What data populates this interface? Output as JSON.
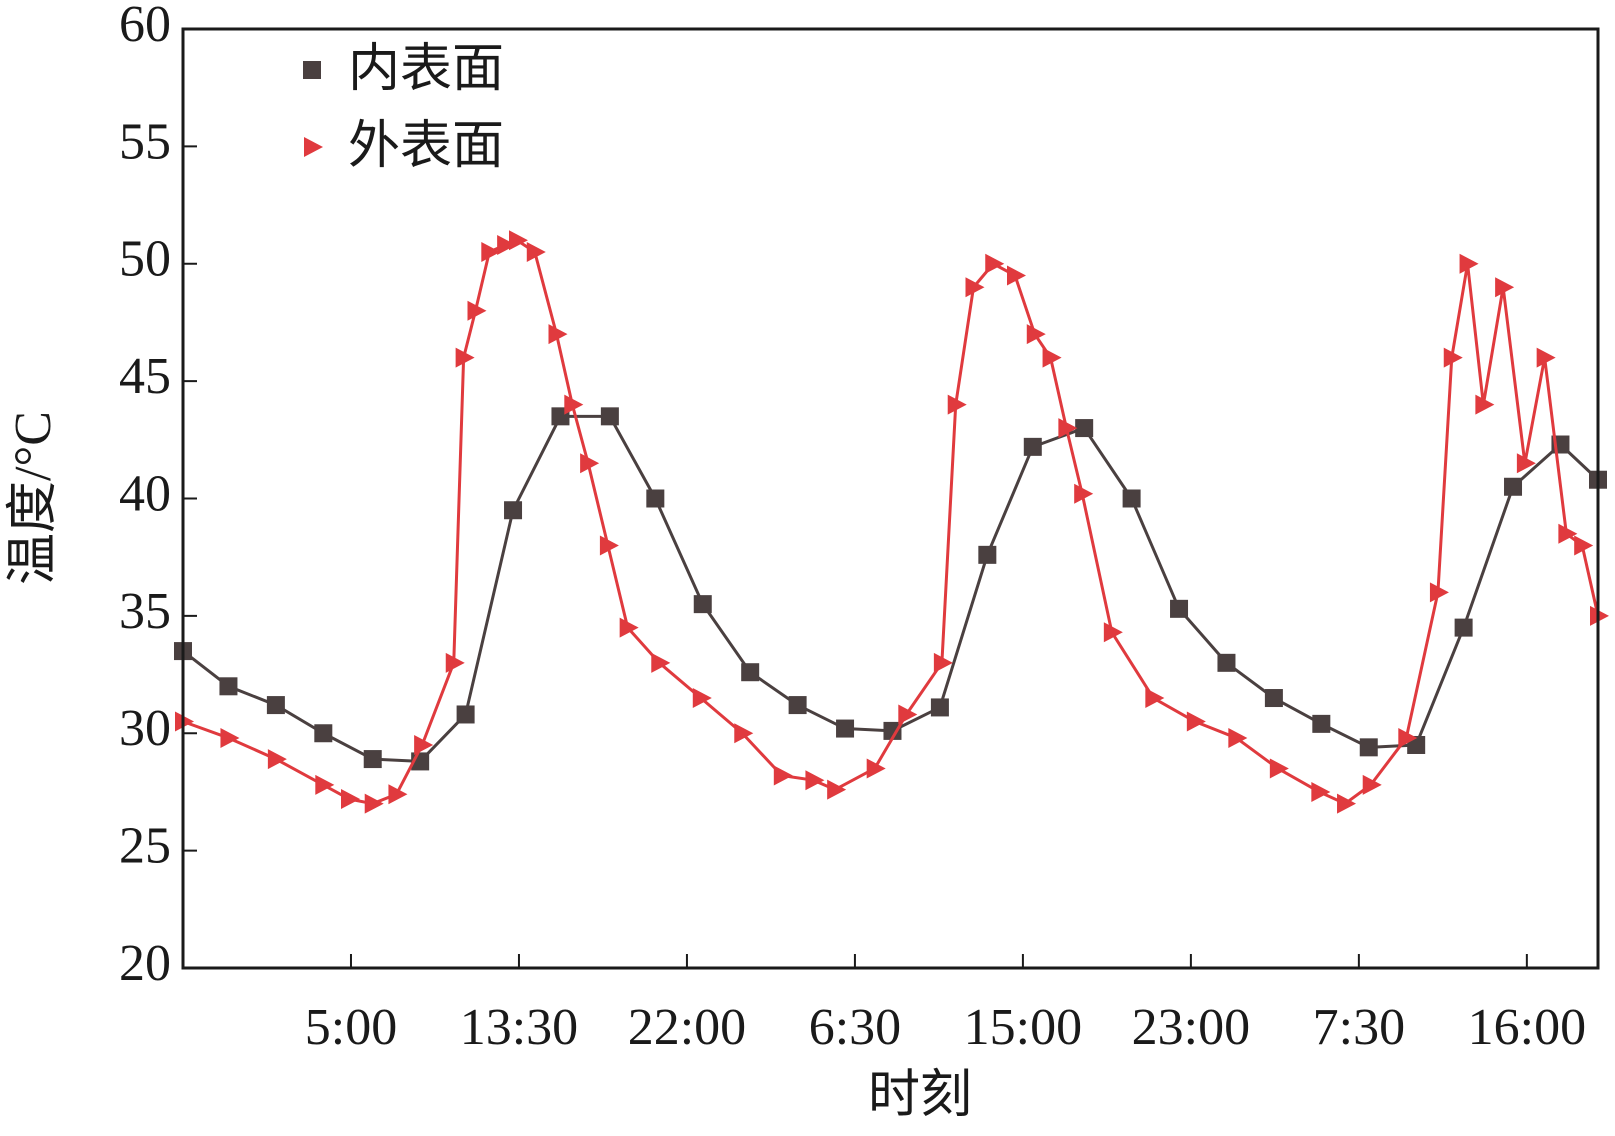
{
  "chart_data": {
    "type": "line",
    "xlabel": "时刻",
    "ylabel": "温度/°C",
    "xlim": [
      0,
      71.6
    ],
    "ylim": [
      20,
      60
    ],
    "xticks": [
      {
        "value": 8.5,
        "label": "5:00"
      },
      {
        "value": 17,
        "label": "13:30"
      },
      {
        "value": 25.5,
        "label": "22:00"
      },
      {
        "value": 34,
        "label": "6:30"
      },
      {
        "value": 42.5,
        "label": "15:00"
      },
      {
        "value": 51,
        "label": "23:00"
      },
      {
        "value": 59.5,
        "label": "7:30"
      },
      {
        "value": 68,
        "label": "16:00"
      }
    ],
    "yticks": [
      20,
      25,
      30,
      35,
      40,
      45,
      50,
      55,
      60
    ],
    "grid": false,
    "legend": "upper left",
    "series": [
      {
        "name": "内表面",
        "color": "#4a4040",
        "marker": "square",
        "x": [
          0,
          2.3,
          4.7,
          7.1,
          9.6,
          12.0,
          14.3,
          16.7,
          19.1,
          21.6,
          23.9,
          26.3,
          28.7,
          31.1,
          33.5,
          35.9,
          38.3,
          40.7,
          43.0,
          45.6,
          48.0,
          50.4,
          52.8,
          55.2,
          57.6,
          60.0,
          62.4,
          64.8,
          67.3,
          69.7,
          71.6
        ],
        "values": [
          33.5,
          32,
          31.2,
          30,
          28.9,
          28.8,
          30.8,
          39.5,
          43.5,
          43.5,
          40,
          35.5,
          32.6,
          31.2,
          30.2,
          30.1,
          31.1,
          37.6,
          42.2,
          43,
          40,
          35.3,
          33,
          31.5,
          30.4,
          29.4,
          29.5,
          34.5,
          40.5,
          42.3,
          40.8
        ]
      },
      {
        "name": "外表面",
        "color": "#e03a3e",
        "marker": "triangle",
        "x": [
          0,
          2.3,
          4.7,
          7.1,
          8.4,
          9.6,
          10.8,
          12.1,
          13.7,
          14.2,
          14.8,
          15.5,
          16.3,
          16.9,
          17.8,
          18.9,
          19.7,
          20.5,
          21.5,
          22.5,
          24.1,
          26.2,
          28.3,
          30.3,
          31.9,
          33.0,
          35.0,
          36.6,
          38.4,
          39.1,
          40.0,
          41.0,
          42.1,
          43.1,
          43.9,
          44.7,
          45.5,
          47.0,
          49.1,
          51.2,
          53.3,
          55.4,
          57.5,
          58.8,
          60.1,
          61.9,
          63.5,
          64.2,
          65.0,
          65.8,
          66.8,
          67.9,
          68.9,
          70.0,
          70.8,
          71.6
        ],
        "values": [
          30.5,
          29.8,
          28.9,
          27.8,
          27.2,
          27,
          27.4,
          29.5,
          33,
          46,
          48,
          50.5,
          50.8,
          51,
          50.5,
          47,
          44,
          41.5,
          38,
          34.5,
          33,
          31.5,
          30,
          28.2,
          28,
          27.6,
          28.5,
          30.8,
          33,
          44,
          49,
          50,
          49.5,
          47,
          46,
          43,
          40.2,
          34.3,
          31.5,
          30.5,
          29.8,
          28.5,
          27.5,
          27,
          27.8,
          29.8,
          36,
          46,
          50,
          44,
          49,
          41.5,
          46,
          38.5,
          38,
          35
        ]
      }
    ]
  }
}
